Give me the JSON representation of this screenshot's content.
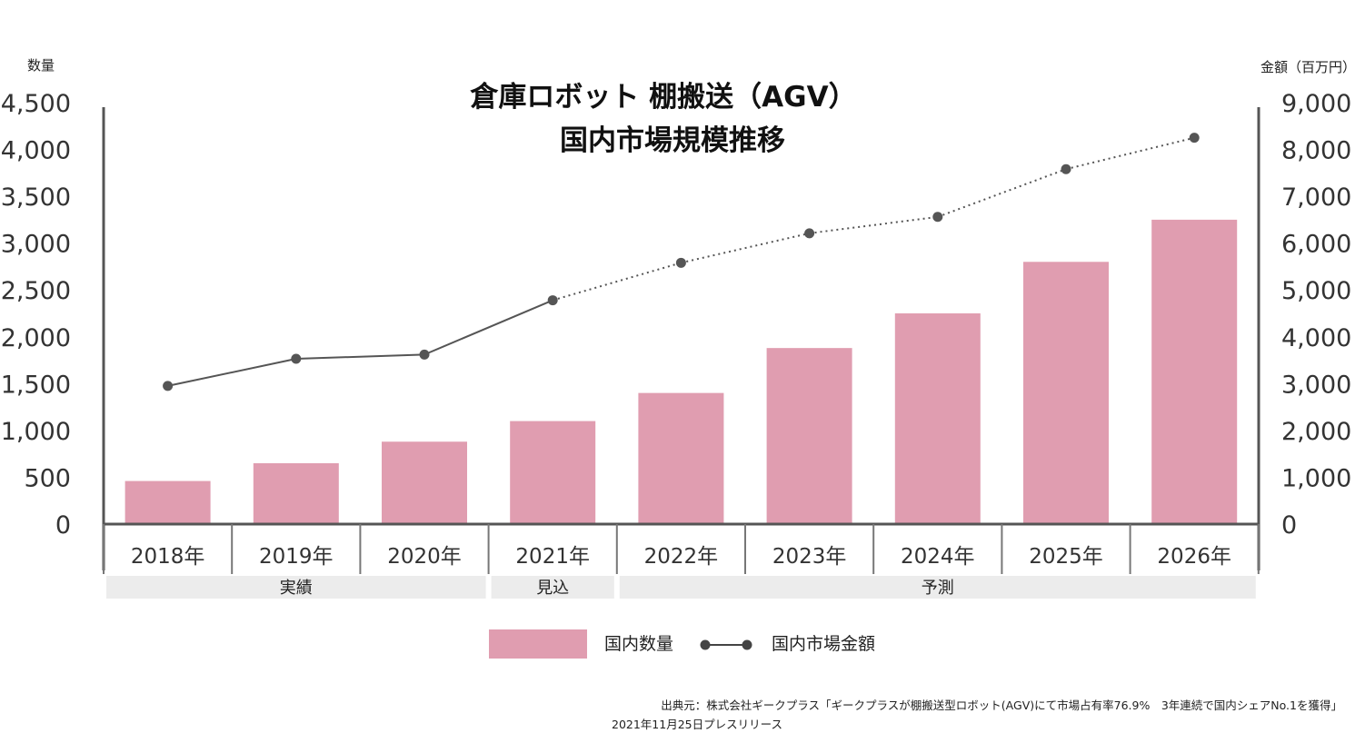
{
  "chart_data": {
    "type": "bar",
    "title": [
      "倉庫ロボット 棚搬送（AGV）",
      "国内市場規模推移"
    ],
    "categories": [
      "2018年",
      "2019年",
      "2020年",
      "2021年",
      "2022年",
      "2023年",
      "2024年",
      "2025年",
      "2026年"
    ],
    "series": [
      {
        "name": "国内数量",
        "kind": "bar",
        "axis": "left",
        "values": [
          460,
          650,
          880,
          1100,
          1400,
          1880,
          2250,
          2800,
          3250
        ],
        "color": "#e09db0"
      },
      {
        "name": "国内市場金額",
        "kind": "line",
        "axis": "right",
        "values": [
          2950,
          3530,
          3620,
          4780,
          5580,
          6210,
          6560,
          7580,
          8250
        ],
        "color": "#555555",
        "solid_through_index": 3
      }
    ],
    "ylabel_left": "数量",
    "ylabel_right": "金額（百万円）",
    "ylim_left": [
      0,
      4500
    ],
    "ylim_right": [
      0,
      9000
    ],
    "yticks_left": [
      "0",
      "500",
      "1,000",
      "1,500",
      "2,000",
      "2,500",
      "3,000",
      "3,500",
      "4,000",
      "4,500"
    ],
    "yticks_right": [
      "0",
      "1,000",
      "2,000",
      "3,000",
      "4,000",
      "5,000",
      "6,000",
      "7,000",
      "8,000",
      "9,000"
    ],
    "periods": [
      {
        "label": "実績",
        "start": 0,
        "end": 2
      },
      {
        "label": "見込",
        "start": 3,
        "end": 3
      },
      {
        "label": "予測",
        "start": 4,
        "end": 8
      }
    ],
    "legend": [
      "国内数量",
      "国内市場金額"
    ],
    "source": [
      "出典元：株式会社ギークプラス「ギークプラスが棚搬送型ロボット(AGV)にて市場占有率76.9%　3年連続で国内シェアNo.1を獲得」",
      "2021年11月25日プレスリリース"
    ]
  }
}
